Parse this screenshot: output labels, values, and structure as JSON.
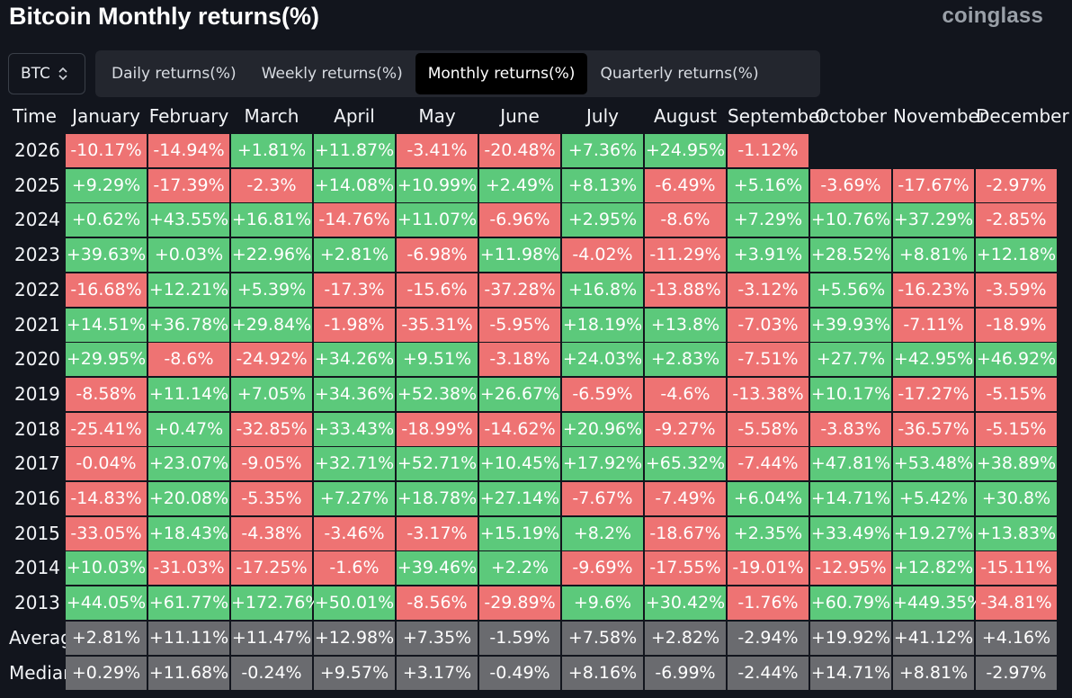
{
  "header": {
    "title": "Bitcoin Monthly returns(%)",
    "brand": "coinglass"
  },
  "asset_select": {
    "value": "BTC",
    "icon": "up-down-chevron-icon"
  },
  "tabs": [
    {
      "label": "Daily returns(%)",
      "active": false
    },
    {
      "label": "Weekly returns(%)",
      "active": false
    },
    {
      "label": "Monthly returns(%)",
      "active": true
    },
    {
      "label": "Quarterly returns(%)",
      "active": false
    }
  ],
  "colors": {
    "positive": "#5cc97b",
    "negative": "#ee7373",
    "summary": "#6a6b6f",
    "background": "#12151d"
  },
  "table": {
    "corner": "Time",
    "months": [
      "January",
      "February",
      "March",
      "April",
      "May",
      "June",
      "July",
      "August",
      "September",
      "October",
      "November",
      "December"
    ],
    "rows": [
      {
        "label": "2026",
        "values": [
          "-10.17%",
          "-14.94%",
          "+1.81%",
          "+11.87%",
          "-3.41%",
          "-20.48%",
          "+7.36%",
          "+24.95%",
          "-1.12%",
          "",
          "",
          ""
        ]
      },
      {
        "label": "2025",
        "values": [
          "+9.29%",
          "-17.39%",
          "-2.3%",
          "+14.08%",
          "+10.99%",
          "+2.49%",
          "+8.13%",
          "-6.49%",
          "+5.16%",
          "-3.69%",
          "-17.67%",
          "-2.97%"
        ]
      },
      {
        "label": "2024",
        "values": [
          "+0.62%",
          "+43.55%",
          "+16.81%",
          "-14.76%",
          "+11.07%",
          "-6.96%",
          "+2.95%",
          "-8.6%",
          "+7.29%",
          "+10.76%",
          "+37.29%",
          "-2.85%"
        ]
      },
      {
        "label": "2023",
        "values": [
          "+39.63%",
          "+0.03%",
          "+22.96%",
          "+2.81%",
          "-6.98%",
          "+11.98%",
          "-4.02%",
          "-11.29%",
          "+3.91%",
          "+28.52%",
          "+8.81%",
          "+12.18%"
        ]
      },
      {
        "label": "2022",
        "values": [
          "-16.68%",
          "+12.21%",
          "+5.39%",
          "-17.3%",
          "-15.6%",
          "-37.28%",
          "+16.8%",
          "-13.88%",
          "-3.12%",
          "+5.56%",
          "-16.23%",
          "-3.59%"
        ]
      },
      {
        "label": "2021",
        "values": [
          "+14.51%",
          "+36.78%",
          "+29.84%",
          "-1.98%",
          "-35.31%",
          "-5.95%",
          "+18.19%",
          "+13.8%",
          "-7.03%",
          "+39.93%",
          "-7.11%",
          "-18.9%"
        ]
      },
      {
        "label": "2020",
        "values": [
          "+29.95%",
          "-8.6%",
          "-24.92%",
          "+34.26%",
          "+9.51%",
          "-3.18%",
          "+24.03%",
          "+2.83%",
          "-7.51%",
          "+27.7%",
          "+42.95%",
          "+46.92%"
        ]
      },
      {
        "label": "2019",
        "values": [
          "-8.58%",
          "+11.14%",
          "+7.05%",
          "+34.36%",
          "+52.38%",
          "+26.67%",
          "-6.59%",
          "-4.6%",
          "-13.38%",
          "+10.17%",
          "-17.27%",
          "-5.15%"
        ]
      },
      {
        "label": "2018",
        "values": [
          "-25.41%",
          "+0.47%",
          "-32.85%",
          "+33.43%",
          "-18.99%",
          "-14.62%",
          "+20.96%",
          "-9.27%",
          "-5.58%",
          "-3.83%",
          "-36.57%",
          "-5.15%"
        ]
      },
      {
        "label": "2017",
        "values": [
          "-0.04%",
          "+23.07%",
          "-9.05%",
          "+32.71%",
          "+52.71%",
          "+10.45%",
          "+17.92%",
          "+65.32%",
          "-7.44%",
          "+47.81%",
          "+53.48%",
          "+38.89%"
        ]
      },
      {
        "label": "2016",
        "values": [
          "-14.83%",
          "+20.08%",
          "-5.35%",
          "+7.27%",
          "+18.78%",
          "+27.14%",
          "-7.67%",
          "-7.49%",
          "+6.04%",
          "+14.71%",
          "+5.42%",
          "+30.8%"
        ]
      },
      {
        "label": "2015",
        "values": [
          "-33.05%",
          "+18.43%",
          "-4.38%",
          "-3.46%",
          "-3.17%",
          "+15.19%",
          "+8.2%",
          "-18.67%",
          "+2.35%",
          "+33.49%",
          "+19.27%",
          "+13.83%"
        ]
      },
      {
        "label": "2014",
        "values": [
          "+10.03%",
          "-31.03%",
          "-17.25%",
          "-1.6%",
          "+39.46%",
          "+2.2%",
          "-9.69%",
          "-17.55%",
          "-19.01%",
          "-12.95%",
          "+12.82%",
          "-15.11%"
        ]
      },
      {
        "label": "2013",
        "values": [
          "+44.05%",
          "+61.77%",
          "+172.76%",
          "+50.01%",
          "-8.56%",
          "-29.89%",
          "+9.6%",
          "+30.42%",
          "-1.76%",
          "+60.79%",
          "+449.35%",
          "-34.81%"
        ]
      }
    ],
    "summary_rows": [
      {
        "label": "Average",
        "values": [
          "+2.81%",
          "+11.11%",
          "+11.47%",
          "+12.98%",
          "+7.35%",
          "-1.59%",
          "+7.58%",
          "+2.82%",
          "-2.94%",
          "+19.92%",
          "+41.12%",
          "+4.16%"
        ]
      },
      {
        "label": "Median",
        "values": [
          "+0.29%",
          "+11.68%",
          "-0.24%",
          "+9.57%",
          "+3.17%",
          "-0.49%",
          "+8.16%",
          "-6.99%",
          "-2.44%",
          "+14.71%",
          "+8.81%",
          "-2.97%"
        ]
      }
    ]
  }
}
